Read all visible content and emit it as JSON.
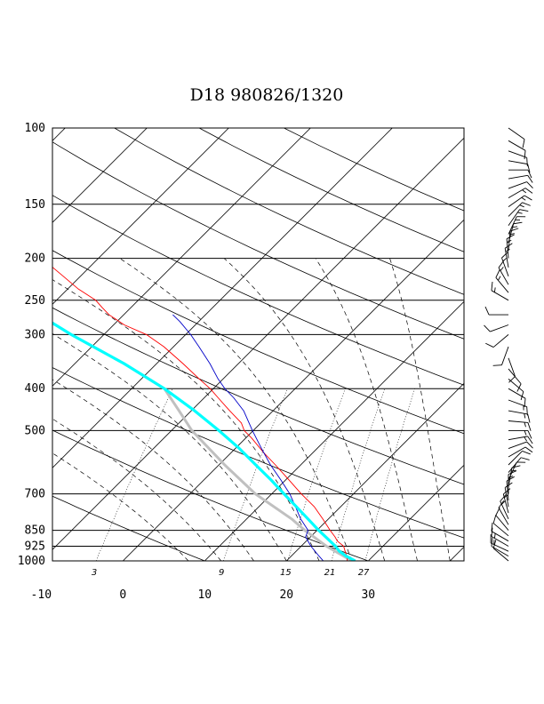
{
  "chart_data": {
    "type": "skew-t",
    "title": "D18 980826/1320",
    "y_axis": {
      "scale": "log-pressure",
      "unit": "hPa",
      "range": [
        1000,
        100
      ],
      "isobar_ticks": [
        100,
        150,
        200,
        250,
        300,
        400,
        500,
        700,
        850,
        925,
        1000
      ]
    },
    "x_axis": {
      "unit": "°C",
      "ticks": [
        -10,
        0,
        10,
        20,
        30
      ],
      "range": [
        -10,
        40
      ]
    },
    "mixing_ratio_labels": [
      "3",
      "9",
      "15",
      "21",
      "27"
    ],
    "grid": true,
    "series": [
      {
        "color": "#ff0000",
        "role": "temperature",
        "points": [
          [
            1000,
            27.4
          ],
          [
            980,
            27.0
          ],
          [
            960,
            26.3
          ],
          [
            925,
            25.2
          ],
          [
            900,
            23.8
          ],
          [
            880,
            23.0
          ],
          [
            850,
            21.6
          ],
          [
            800,
            19.3
          ],
          [
            750,
            16.8
          ],
          [
            700,
            13.6
          ],
          [
            650,
            10.4
          ],
          [
            600,
            6.9
          ],
          [
            560,
            3.8
          ],
          [
            520,
            0.7
          ],
          [
            500,
            -1.1
          ],
          [
            480,
            -2.4
          ],
          [
            450,
            -5.3
          ],
          [
            420,
            -8.3
          ],
          [
            400,
            -10.4
          ],
          [
            380,
            -12.9
          ],
          [
            350,
            -16.8
          ],
          [
            320,
            -21.2
          ],
          [
            300,
            -24.8
          ],
          [
            285,
            -28.7
          ],
          [
            280,
            -29.7
          ],
          [
            270,
            -31.8
          ],
          [
            260,
            -33.5
          ],
          [
            250,
            -35.2
          ],
          [
            235,
            -38.8
          ],
          [
            220,
            -42.1
          ],
          [
            200,
            -46.9
          ],
          [
            185,
            -51.3
          ],
          [
            175,
            -54.6
          ],
          [
            165,
            -58.2
          ],
          [
            155,
            -61.0
          ],
          [
            150,
            -62.1
          ],
          [
            140,
            -63.3
          ],
          [
            130,
            -64.8
          ],
          [
            120,
            -66.2
          ],
          [
            110,
            -68.0
          ],
          [
            100,
            -70.2
          ]
        ]
      },
      {
        "color": "#0000c8",
        "role": "dewpoint",
        "points": [
          [
            1000,
            24.5
          ],
          [
            975,
            23.4
          ],
          [
            925,
            21.2
          ],
          [
            880,
            19.4
          ],
          [
            850,
            18.9
          ],
          [
            800,
            16.6
          ],
          [
            750,
            14.5
          ],
          [
            700,
            12.2
          ],
          [
            650,
            9.4
          ],
          [
            600,
            6.3
          ],
          [
            550,
            3.2
          ],
          [
            500,
            -0.1
          ],
          [
            450,
            -3.6
          ],
          [
            420,
            -6.4
          ],
          [
            400,
            -8.6
          ],
          [
            380,
            -10.6
          ],
          [
            350,
            -13.5
          ],
          [
            320,
            -16.9
          ],
          [
            300,
            -19.4
          ],
          [
            280,
            -22.3
          ],
          [
            270,
            -24.0
          ]
        ]
      },
      {
        "color": "#00ffff",
        "role": "parcel",
        "points": [
          [
            1000,
            28.4
          ],
          [
            975,
            26.7
          ],
          [
            950,
            25.3
          ],
          [
            925,
            24.2
          ],
          [
            900,
            22.9
          ],
          [
            850,
            20.2
          ],
          [
            800,
            17.5
          ],
          [
            750,
            14.6
          ],
          [
            700,
            11.5
          ],
          [
            650,
            8.2
          ],
          [
            600,
            4.5
          ],
          [
            550,
            0.5
          ],
          [
            500,
            -4.2
          ],
          [
            450,
            -9.6
          ],
          [
            400,
            -16.0
          ],
          [
            350,
            -24.0
          ],
          [
            300,
            -34.0
          ],
          [
            250,
            -45.0
          ],
          [
            200,
            -57.0
          ],
          [
            175,
            -63.5
          ],
          [
            150,
            -71.0
          ],
          [
            125,
            -70.2
          ],
          [
            100,
            -69.7
          ]
        ]
      },
      {
        "color": "#c0c0c0",
        "role": "parcel-dewpoint",
        "points": [
          [
            1000,
            28.0
          ],
          [
            925,
            23.1
          ],
          [
            850,
            18.5
          ],
          [
            800,
            15.5
          ],
          [
            700,
            8.0
          ],
          [
            600,
            0.7
          ],
          [
            500,
            -7.5
          ],
          [
            450,
            -11.5
          ],
          [
            400,
            -16.0
          ],
          [
            350,
            -24.0
          ],
          [
            300,
            -34.0
          ],
          [
            250,
            -45.0
          ],
          [
            200,
            -57.0
          ],
          [
            175,
            -63.5
          ],
          [
            150,
            -71.0
          ],
          [
            125,
            -74.0
          ],
          [
            100,
            -78.0
          ]
        ]
      }
    ],
    "wind_barbs": [
      [
        1000,
        310,
        10
      ],
      [
        975,
        300,
        10
      ],
      [
        950,
        295,
        15
      ],
      [
        925,
        300,
        15
      ],
      [
        900,
        300,
        10
      ],
      [
        875,
        310,
        10
      ],
      [
        850,
        320,
        10
      ],
      [
        825,
        330,
        10
      ],
      [
        800,
        335,
        15
      ],
      [
        775,
        345,
        15
      ],
      [
        750,
        350,
        10
      ],
      [
        725,
        355,
        10
      ],
      [
        700,
        360,
        15
      ],
      [
        675,
        10,
        15
      ],
      [
        650,
        25,
        10
      ],
      [
        625,
        40,
        10
      ],
      [
        600,
        45,
        10
      ],
      [
        575,
        60,
        10
      ],
      [
        550,
        70,
        10
      ],
      [
        525,
        80,
        15
      ],
      [
        500,
        90,
        15
      ],
      [
        475,
        95,
        15
      ],
      [
        450,
        100,
        15
      ],
      [
        425,
        110,
        15
      ],
      [
        400,
        120,
        10
      ],
      [
        380,
        130,
        10
      ],
      [
        360,
        140,
        10
      ],
      [
        340,
        160,
        10
      ],
      [
        320,
        200,
        10
      ],
      [
        300,
        230,
        10
      ],
      [
        285,
        250,
        10
      ],
      [
        270,
        270,
        10
      ],
      [
        250,
        300,
        15
      ],
      [
        240,
        320,
        15
      ],
      [
        230,
        330,
        15
      ],
      [
        220,
        340,
        15
      ],
      [
        210,
        350,
        15
      ],
      [
        200,
        355,
        15
      ],
      [
        192,
        5,
        15
      ],
      [
        184,
        15,
        15
      ],
      [
        176,
        25,
        15
      ],
      [
        168,
        35,
        15
      ],
      [
        160,
        45,
        15
      ],
      [
        152,
        55,
        15
      ],
      [
        145,
        60,
        15
      ],
      [
        138,
        70,
        10
      ],
      [
        131,
        80,
        10
      ],
      [
        125,
        90,
        10
      ],
      [
        119,
        100,
        10
      ],
      [
        113,
        110,
        10
      ],
      [
        107,
        120,
        10
      ],
      [
        100,
        125,
        10
      ]
    ]
  }
}
